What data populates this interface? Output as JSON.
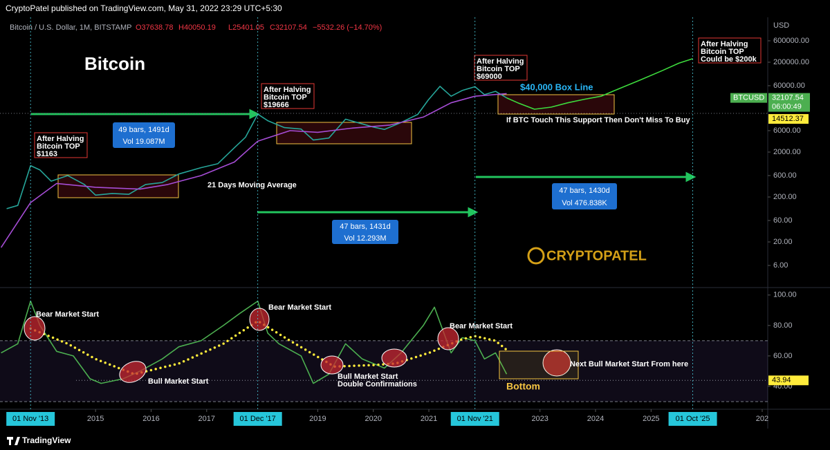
{
  "header": {
    "publisher": "CryptoPatel published on TradingView.com, May 31, 2022 23:29 UTC+5:30",
    "symbol": "Bitcoin / U.S. Dollar, 1M, BITSTAMP",
    "open": "O37638.78",
    "high": "H40050.19",
    "low": "L25401.05",
    "close": "C32107.54",
    "change": "−5532.26 (−14.70%)",
    "currency": "USD"
  },
  "footer": {
    "brand": "TradingView"
  },
  "chart_data": [
    {
      "type": "line",
      "title": "Bitcoin",
      "log_scale": true,
      "xlim": [
        2013.28,
        2027.1
      ],
      "ylim": [
        2,
        2000000
      ],
      "yticks": [
        {
          "value": 600000,
          "label": "600000.00"
        },
        {
          "value": 200000,
          "label": "200000.00"
        },
        {
          "value": 60000,
          "label": "60000.00"
        },
        {
          "value": 6000,
          "label": "6000.00"
        },
        {
          "value": 2000,
          "label": "2000.00"
        },
        {
          "value": 600,
          "label": "600.00"
        },
        {
          "value": 200,
          "label": "200.00"
        },
        {
          "value": 60,
          "label": "60.00"
        },
        {
          "value": 20,
          "label": "20.00"
        },
        {
          "value": 6,
          "label": "6.00"
        }
      ],
      "series": [
        {
          "color": "#26a69a",
          "x": [
            2013.4,
            2013.6,
            2013.83,
            2014.0,
            2014.2,
            2014.5,
            2014.8,
            2015.0,
            2015.3,
            2015.6,
            2015.9,
            2016.2,
            2016.5,
            2016.9,
            2017.2,
            2017.5,
            2017.7,
            2017.92,
            2018.1,
            2018.4,
            2018.7,
            2018.92,
            2019.2,
            2019.5,
            2019.8,
            2020.0,
            2020.2,
            2020.5,
            2020.8,
            2020.99,
            2021.2,
            2021.4,
            2021.6,
            2021.83,
            2022.0,
            2022.2,
            2022.4
          ],
          "values": [
            110,
            130,
            1000,
            800,
            450,
            600,
            380,
            220,
            240,
            230,
            380,
            420,
            650,
            900,
            1100,
            2500,
            4300,
            14000,
            10000,
            7000,
            6500,
            3700,
            4100,
            10800,
            8500,
            7200,
            6400,
            9100,
            13800,
            29000,
            58000,
            35000,
            47000,
            57000,
            38000,
            45000,
            32107.54
          ]
        },
        {
          "color": "#3ddc3d",
          "x": [
            2022.4,
            2022.6,
            2022.9,
            2023.2,
            2023.5,
            2023.8,
            2024.1,
            2024.4,
            2024.8,
            2025.2,
            2025.5,
            2025.75
          ],
          "values": [
            32107.54,
            25000,
            18000,
            20000,
            25000,
            30000,
            35000,
            50000,
            80000,
            130000,
            190000,
            240000
          ]
        },
        {
          "color": "#a64dd6",
          "x": [
            2013.3,
            2013.83,
            2014.3,
            2015.0,
            2015.8,
            2016.3,
            2016.9,
            2017.5,
            2017.92,
            2018.5,
            2019.0,
            2019.6,
            2020.3,
            2020.9,
            2021.4,
            2021.83,
            2022.4
          ],
          "values": [
            15,
            150,
            400,
            330,
            300,
            380,
            600,
            1200,
            3500,
            6000,
            5500,
            6800,
            8000,
            12000,
            25000,
            35000,
            40000
          ]
        }
      ],
      "last_symbol": "BTCUSD",
      "last_price": 32107.54,
      "countdown": "06:00:49",
      "support_level": 14512.37,
      "top_notes": [
        [
          "After Halving",
          "Bitcoin TOP",
          "$1163"
        ],
        [
          "After Halving",
          "Bitcoin TOP",
          "$19666"
        ],
        [
          "After Halving",
          "Bitcoin TOP",
          "$69000"
        ],
        [
          "After Halving",
          "Bitcoin TOP",
          "Could be $200k"
        ]
      ],
      "measures": [
        [
          "49 bars, 1491d",
          "Vol 19.087M"
        ],
        [
          "47 bars, 1431d",
          "Vol 12.293M"
        ],
        [
          "47 bars, 1430d",
          "Vol 476.838K"
        ]
      ],
      "annotations": [
        "$40,000 Box Line",
        "If BTC Touch This Support Then Don't Miss To Buy",
        "21 Days Moving Average",
        "CRYPTOPATEL"
      ]
    },
    {
      "type": "line",
      "xlim": [
        2013.28,
        2027.1
      ],
      "ylim": [
        25,
        104
      ],
      "band": [
        30,
        70
      ],
      "yticks": [
        {
          "value": 100,
          "label": "100.00"
        },
        {
          "value": 80,
          "label": "80.00"
        },
        {
          "value": 60,
          "label": "60.00"
        },
        {
          "value": 40,
          "label": "40.00"
        }
      ],
      "xticks": [
        2015,
        2016,
        2017,
        2019,
        2020,
        2021,
        2023,
        2024,
        2025,
        {
          "value": 2027,
          "label": "202"
        }
      ],
      "highlight_ticks": [
        {
          "value": 2013.83,
          "label": "01 Nov '13"
        },
        {
          "value": 2017.92,
          "label": "01 Dec '17"
        },
        {
          "value": 2021.83,
          "label": "01 Nov '21"
        },
        {
          "value": 2025.75,
          "label": "01 Oct '25"
        }
      ],
      "series": [
        {
          "color": "#4caf50",
          "x": [
            2013.3,
            2013.6,
            2013.83,
            2014.0,
            2014.3,
            2014.6,
            2014.9,
            2015.1,
            2015.5,
            2015.8,
            2016.2,
            2016.5,
            2016.9,
            2017.3,
            2017.6,
            2017.92,
            2018.1,
            2018.3,
            2018.7,
            2018.92,
            2019.2,
            2019.5,
            2019.8,
            2020.2,
            2020.5,
            2020.9,
            2021.1,
            2021.4,
            2021.6,
            2021.83,
            2022.0,
            2022.2,
            2022.4
          ],
          "values": [
            62,
            68,
            96,
            80,
            63,
            60,
            45,
            42,
            45,
            50,
            58,
            66,
            70,
            80,
            88,
            96,
            75,
            68,
            60,
            42,
            48,
            68,
            58,
            52,
            62,
            80,
            92,
            62,
            72,
            70,
            58,
            62,
            48
          ]
        },
        {
          "color": "#ffeb3b",
          "dotted": true,
          "x": [
            2013.83,
            2014.5,
            2015.0,
            2015.7,
            2016.5,
            2017.3,
            2017.92,
            2018.5,
            2019.3,
            2020.0,
            2020.4,
            2021.0,
            2021.6,
            2021.83,
            2022.2,
            2022.4
          ],
          "values": [
            78,
            68,
            58,
            48,
            55,
            68,
            83,
            70,
            53,
            54,
            55,
            62,
            71,
            73,
            70,
            64
          ]
        }
      ],
      "current_level": 43.94,
      "annotations": [
        "Bear Market Start",
        "Bear Market Start",
        "Bear Market Start",
        "Bull Market Start",
        "Bull Market Start",
        "Double Confirmations",
        "Next Bull Market Start From here",
        "Bottom"
      ]
    }
  ]
}
